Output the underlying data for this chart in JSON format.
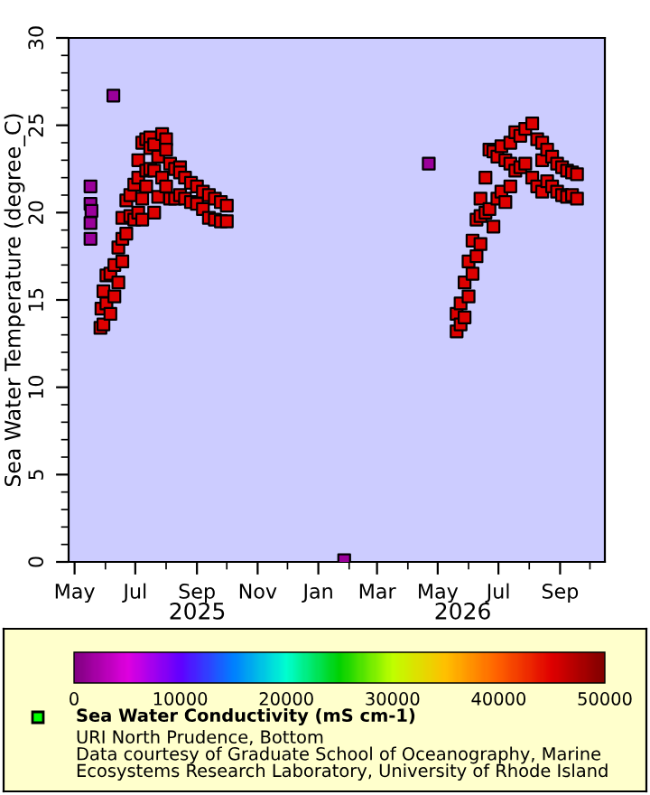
{
  "chart_data": {
    "type": "scatter",
    "ylabel": "Sea Water Temperature (degree_C)",
    "xlim": [
      "2025-04-25",
      "2026-10-16"
    ],
    "xticks": [
      {
        "value": "2025-05-01",
        "label": "May"
      },
      {
        "value": "2025-07-01",
        "label": "Jul"
      },
      {
        "value": "2025-09-01",
        "label": "Sep"
      },
      {
        "value": "2025-11-01",
        "label": "Nov"
      },
      {
        "value": "2026-01-01",
        "label": "Jan"
      },
      {
        "value": "2026-03-01",
        "label": "Mar"
      },
      {
        "value": "2026-05-01",
        "label": "May"
      },
      {
        "value": "2026-07-01",
        "label": "Jul"
      },
      {
        "value": "2026-09-01",
        "label": "Sep"
      }
    ],
    "ylim": [
      0,
      30
    ],
    "yticks": [
      0,
      5,
      10,
      15,
      20,
      25,
      30
    ],
    "clim": [
      0,
      50000
    ],
    "cticks": [
      0,
      10000,
      20000,
      30000,
      40000,
      50000
    ],
    "marker": "square",
    "grid": false,
    "clabel": "Sea Water Conductivity (mS cm-1)",
    "series": [
      {
        "x": [
          "2025-05-17",
          "2025-05-17",
          "2025-05-17",
          "2025-05-17",
          "2025-05-18",
          "2025-05-27",
          "2025-05-28",
          "2025-05-30",
          "2025-05-30",
          "2025-06-02",
          "2025-06-02",
          "2025-06-06",
          "2025-06-06",
          "2025-06-09",
          "2025-06-10",
          "2025-06-10",
          "2025-06-14",
          "2025-06-14",
          "2025-06-18",
          "2025-06-18",
          "2025-06-18",
          "2025-06-22",
          "2025-06-22",
          "2025-06-26",
          "2025-06-26",
          "2025-06-30",
          "2025-06-30",
          "2025-07-04",
          "2025-07-04",
          "2025-07-04",
          "2025-07-08",
          "2025-07-08",
          "2025-07-08",
          "2025-07-12",
          "2025-07-12",
          "2025-07-12",
          "2025-07-16",
          "2025-07-16",
          "2025-07-16",
          "2025-07-20",
          "2025-07-20",
          "2025-07-20",
          "2025-07-24",
          "2025-07-24",
          "2025-07-28",
          "2025-07-28",
          "2025-08-01",
          "2025-08-01",
          "2025-08-01",
          "2025-08-05",
          "2025-08-05",
          "2025-08-10",
          "2025-08-10",
          "2025-08-15",
          "2025-08-15",
          "2025-08-15",
          "2025-08-20",
          "2025-08-20",
          "2025-08-26",
          "2025-08-26",
          "2025-09-01",
          "2025-09-01",
          "2025-09-07",
          "2025-09-07",
          "2025-09-13",
          "2025-09-13",
          "2025-09-19",
          "2025-09-19",
          "2025-09-25",
          "2025-09-25",
          "2025-10-01",
          "2025-10-01",
          "2026-01-27",
          "2026-04-22",
          "2026-05-20",
          "2026-05-20",
          "2026-05-24",
          "2026-05-24",
          "2026-05-28",
          "2026-05-28",
          "2026-06-01",
          "2026-06-01",
          "2026-06-05",
          "2026-06-05",
          "2026-06-09",
          "2026-06-09",
          "2026-06-13",
          "2026-06-13",
          "2026-06-13",
          "2026-06-18",
          "2026-06-18",
          "2026-06-22",
          "2026-06-22",
          "2026-06-26",
          "2026-06-26",
          "2026-06-30",
          "2026-06-30",
          "2026-07-04",
          "2026-07-04",
          "2026-07-08",
          "2026-07-08",
          "2026-07-13",
          "2026-07-13",
          "2026-07-13",
          "2026-07-18",
          "2026-07-18",
          "2026-07-23",
          "2026-07-23",
          "2026-07-28",
          "2026-07-28",
          "2026-08-04",
          "2026-08-04",
          "2026-08-09",
          "2026-08-09",
          "2026-08-14",
          "2026-08-14",
          "2026-08-14",
          "2026-08-19",
          "2026-08-19",
          "2026-08-24",
          "2026-08-24",
          "2026-08-29",
          "2026-08-29",
          "2026-09-03",
          "2026-09-03",
          "2026-09-08",
          "2026-09-08",
          "2026-09-13",
          "2026-09-13",
          "2026-09-18",
          "2026-09-18"
        ],
        "values": [
          21.5,
          20.5,
          19.4,
          18.5,
          20.1,
          13.4,
          14.5,
          15.5,
          13.6,
          16.4,
          14.8,
          16.5,
          14.2,
          26.7,
          17.0,
          15.2,
          18.0,
          16.0,
          19.7,
          17.2,
          18.5,
          20.7,
          18.8,
          21.0,
          19.8,
          21.6,
          19.6,
          23.0,
          20.0,
          22.0,
          24.0,
          19.6,
          20.8,
          24.2,
          21.5,
          22.4,
          24.3,
          23.7,
          22.5,
          23.9,
          20.0,
          22.4,
          23.2,
          20.9,
          24.5,
          22.0,
          24.2,
          21.5,
          23.6,
          22.8,
          20.8,
          22.5,
          20.8,
          22.6,
          21.0,
          22.3,
          22.0,
          20.8,
          21.7,
          20.6,
          21.5,
          20.5,
          21.2,
          20.2,
          21.0,
          19.7,
          20.8,
          19.6,
          20.6,
          19.5,
          20.4,
          19.5,
          0.1,
          22.8,
          14.2,
          13.2,
          14.8,
          13.6,
          16.0,
          14.0,
          17.2,
          15.2,
          18.4,
          16.5,
          19.6,
          17.5,
          20.8,
          18.2,
          19.8,
          22.0,
          20.0,
          23.6,
          20.2,
          23.5,
          19.2,
          23.2,
          20.8,
          23.8,
          21.2,
          23.0,
          20.6,
          24.0,
          21.5,
          22.8,
          24.6,
          22.4,
          24.4,
          22.6,
          24.8,
          22.8,
          25.1,
          22.0,
          24.2,
          21.5,
          24.0,
          21.2,
          23.0,
          23.6,
          21.8,
          23.2,
          21.5,
          22.8,
          21.2,
          22.6,
          21.0,
          22.4,
          20.9,
          22.3,
          21.0,
          22.2,
          20.8
        ],
        "cvalues": [
          1500,
          1500,
          1500,
          1500,
          1500,
          45000,
          45000,
          45000,
          45000,
          45000,
          45000,
          45000,
          45000,
          1500,
          45000,
          45000,
          45000,
          45000,
          45000,
          45000,
          45000,
          45000,
          45000,
          45000,
          45000,
          45000,
          45000,
          45000,
          45000,
          45000,
          45000,
          45000,
          45000,
          45000,
          45000,
          45000,
          45000,
          45000,
          45000,
          45000,
          45000,
          45000,
          45000,
          45000,
          45000,
          45000,
          45000,
          45000,
          45000,
          45000,
          45000,
          45000,
          45000,
          45000,
          45000,
          45000,
          45000,
          45000,
          45000,
          45000,
          45000,
          45000,
          45000,
          45000,
          45000,
          45000,
          45000,
          45000,
          45000,
          45000,
          45000,
          45000,
          1500,
          1500,
          45000,
          45000,
          45000,
          45000,
          45000,
          45000,
          45000,
          45000,
          45000,
          45000,
          45000,
          45000,
          45000,
          45000,
          45000,
          45000,
          45000,
          45000,
          45000,
          45000,
          45000,
          45000,
          45000,
          45000,
          45000,
          45000,
          45000,
          45000,
          45000,
          45000,
          45000,
          45000,
          45000,
          45000,
          45000,
          45000,
          45000,
          45000,
          45000,
          45000,
          45000,
          45000,
          45000,
          45000,
          45000,
          45000,
          45000,
          45000,
          45000,
          45000,
          45000,
          45000,
          45000,
          45000,
          45000,
          45000,
          45000
        ]
      }
    ],
    "annotations": [
      "2025",
      "2026",
      "URI North Prudence, Bottom",
      "Data courtesy of Graduate School of Oceanography, Marine",
      "Ecosystems Research Laboratory, University of Rhode Island"
    ]
  }
}
